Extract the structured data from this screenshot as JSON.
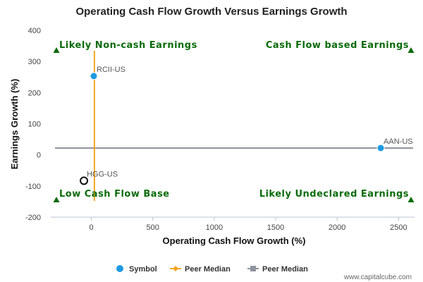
{
  "chart_data": {
    "type": "scatter",
    "title": "Operating Cash Flow Growth Versus Earnings Growth",
    "xlabel": "Operating Cash Flow Growth (%)",
    "ylabel": "Earnings Growth (%)",
    "xlim": [
      -330,
      2630
    ],
    "ylim": [
      -200,
      400
    ],
    "x_ticks": [
      0,
      500,
      1000,
      1500,
      2000,
      2500
    ],
    "y_ticks": [
      -200,
      -100,
      0,
      100,
      200,
      300,
      400
    ],
    "grid": false,
    "legend_position": "bottom",
    "points": [
      {
        "label": "RCII-US",
        "x": 20,
        "y": 253,
        "filled": true
      },
      {
        "label": "AAN-US",
        "x": 2355,
        "y": 22,
        "filled": true
      },
      {
        "label": "HGG-US",
        "x": -60,
        "y": -83,
        "filled": false
      }
    ],
    "peer_median_x": 25,
    "peer_median_y": 22,
    "quadrant_labels": {
      "top_left": "Likely Non-cash Earnings",
      "top_right": "Cash Flow based Earnings",
      "bottom_left": "Low Cash Flow Base",
      "bottom_right": "Likely Undeclared Earnings"
    },
    "legend": [
      {
        "label": "Symbol",
        "marker": "circle",
        "color": "#1e9ae0"
      },
      {
        "label": "Peer Median",
        "marker": "diamond",
        "color": "#f5a623"
      },
      {
        "label": "Peer Median",
        "marker": "square",
        "color": "#8e949e"
      }
    ],
    "colors": {
      "symbol": "#1e9ae0",
      "peer_median_vertical": "#f5a623",
      "peer_median_horizontal": "#8e949e",
      "quadrant_text": "#0a6b0a",
      "hollow_marker": "#111111"
    }
  },
  "credit": "www.capitalcube.com"
}
